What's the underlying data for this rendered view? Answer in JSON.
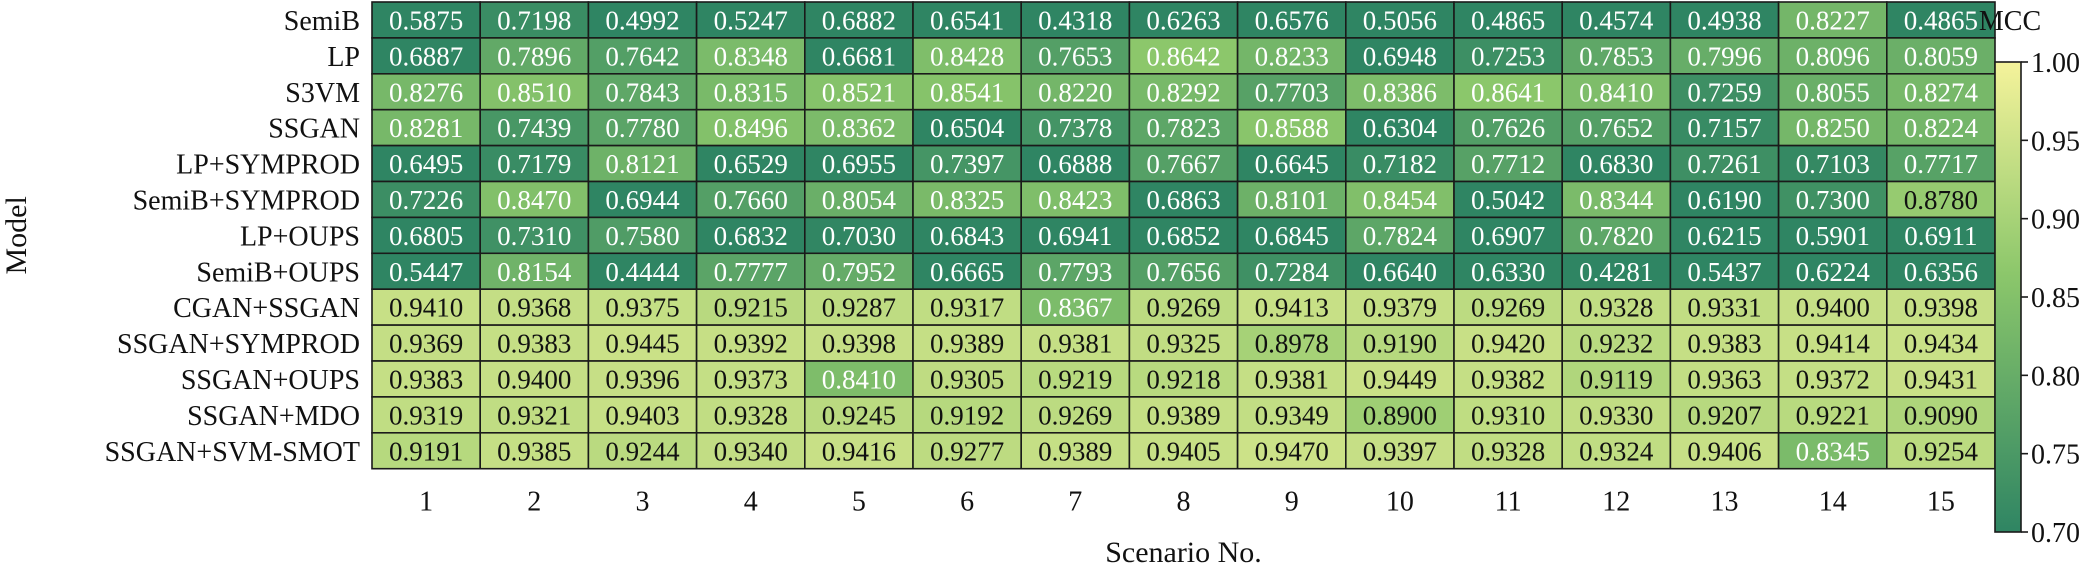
{
  "chart_data": {
    "type": "heatmap",
    "xlabel": "Scenario No.",
    "ylabel": "Model",
    "x_categories": [
      "1",
      "2",
      "3",
      "4",
      "5",
      "6",
      "7",
      "8",
      "9",
      "10",
      "11",
      "12",
      "13",
      "14",
      "15"
    ],
    "y_categories": [
      "SemiB",
      "LP",
      "S3VM",
      "SSGAN",
      "LP+SYMPROD",
      "SemiB+SYMPROD",
      "LP+OUPS",
      "SemiB+OUPS",
      "CGAN+SSGAN",
      "SSGAN+SYMPROD",
      "SSGAN+OUPS",
      "SSGAN+MDO",
      "SSGAN+SVM-SMOT"
    ],
    "values": [
      [
        "0.5875",
        "0.7198",
        "0.4992",
        "0.5247",
        "0.6882",
        "0.6541",
        "0.4318",
        "0.6263",
        "0.6576",
        "0.5056",
        "0.4865",
        "0.4574",
        "0.4938",
        "0.8227",
        "0.4865"
      ],
      [
        "0.6887",
        "0.7896",
        "0.7642",
        "0.8348",
        "0.6681",
        "0.8428",
        "0.7653",
        "0.8642",
        "0.8233",
        "0.6948",
        "0.7253",
        "0.7853",
        "0.7996",
        "0.8096",
        "0.8059"
      ],
      [
        "0.8276",
        "0.8510",
        "0.7843",
        "0.8315",
        "0.8521",
        "0.8541",
        "0.8220",
        "0.8292",
        "0.7703",
        "0.8386",
        "0.8641",
        "0.8410",
        "0.7259",
        "0.8055",
        "0.8274"
      ],
      [
        "0.8281",
        "0.7439",
        "0.7780",
        "0.8496",
        "0.8362",
        "0.6504",
        "0.7378",
        "0.7823",
        "0.8588",
        "0.6304",
        "0.7626",
        "0.7652",
        "0.7157",
        "0.8250",
        "0.8224"
      ],
      [
        "0.6495",
        "0.7179",
        "0.8121",
        "0.6529",
        "0.6955",
        "0.7397",
        "0.6888",
        "0.7667",
        "0.6645",
        "0.7182",
        "0.7712",
        "0.6830",
        "0.7261",
        "0.7103",
        "0.7717"
      ],
      [
        "0.7226",
        "0.8470",
        "0.6944",
        "0.7660",
        "0.8054",
        "0.8325",
        "0.8423",
        "0.6863",
        "0.8101",
        "0.8454",
        "0.5042",
        "0.8344",
        "0.6190",
        "0.7300",
        "0.8780"
      ],
      [
        "0.6805",
        "0.7310",
        "0.7580",
        "0.6832",
        "0.7030",
        "0.6843",
        "0.6941",
        "0.6852",
        "0.6845",
        "0.7824",
        "0.6907",
        "0.7820",
        "0.6215",
        "0.5901",
        "0.6911"
      ],
      [
        "0.5447",
        "0.8154",
        "0.4444",
        "0.7777",
        "0.7952",
        "0.6665",
        "0.7793",
        "0.7656",
        "0.7284",
        "0.6640",
        "0.6330",
        "0.4281",
        "0.5437",
        "0.6224",
        "0.6356"
      ],
      [
        "0.9410",
        "0.9368",
        "0.9375",
        "0.9215",
        "0.9287",
        "0.9317",
        "0.8367",
        "0.9269",
        "0.9413",
        "0.9379",
        "0.9269",
        "0.9328",
        "0.9331",
        "0.9400",
        "0.9398"
      ],
      [
        "0.9369",
        "0.9383",
        "0.9445",
        "0.9392",
        "0.9398",
        "0.9389",
        "0.9381",
        "0.9325",
        "0.8978",
        "0.9190",
        "0.9420",
        "0.9232",
        "0.9383",
        "0.9414",
        "0.9434"
      ],
      [
        "0.9383",
        "0.9400",
        "0.9396",
        "0.9373",
        "0.8410",
        "0.9305",
        "0.9219",
        "0.9218",
        "0.9381",
        "0.9449",
        "0.9382",
        "0.9119",
        "0.9363",
        "0.9372",
        "0.9431"
      ],
      [
        "0.9319",
        "0.9321",
        "0.9403",
        "0.9328",
        "0.9245",
        "0.9192",
        "0.9269",
        "0.9389",
        "0.9349",
        "0.8900",
        "0.9310",
        "0.9330",
        "0.9207",
        "0.9221",
        "0.9090"
      ],
      [
        "0.9191",
        "0.9385",
        "0.9244",
        "0.9340",
        "0.9416",
        "0.9277",
        "0.9389",
        "0.9405",
        "0.9470",
        "0.9397",
        "0.9328",
        "0.9324",
        "0.9406",
        "0.8345",
        "0.9254"
      ]
    ],
    "colorbar": {
      "label": "MCC",
      "min": 0.7,
      "max": 1.0,
      "ticks": [
        "0.70",
        "0.75",
        "0.80",
        "0.85",
        "0.90",
        "0.95",
        "1.00"
      ],
      "color_low": "#2f8563",
      "color_mid": "#8cc76b",
      "color_high": "#f5f39b"
    },
    "grid": true,
    "legend_position": "right"
  }
}
